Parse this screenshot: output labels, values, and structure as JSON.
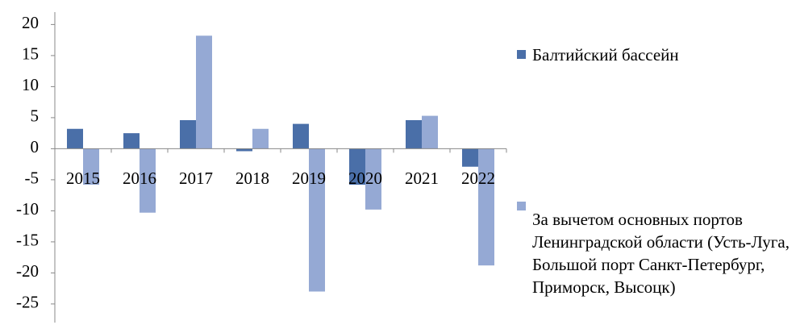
{
  "chart_data": {
    "type": "bar",
    "categories": [
      "2015",
      "2016",
      "2017",
      "2018",
      "2019",
      "2020",
      "2021",
      "2022"
    ],
    "series": [
      {
        "name": "Балтийский бассейн",
        "color": "#4a6fa8",
        "values": [
          3.2,
          2.5,
          4.6,
          -0.4,
          4.0,
          -5.8,
          4.6,
          -2.9
        ]
      },
      {
        "name": "За вычетом основных портов Ленинградской области (Усть-Луга, Большой порт Санкт-Петербург, Приморск, Высоцк)",
        "color": "#95a9d4",
        "values": [
          -5.8,
          -10.3,
          18.2,
          3.2,
          -23.0,
          -9.8,
          5.3,
          -18.8
        ]
      }
    ],
    "ylim": [
      -28,
      22
    ],
    "yticks": [
      -25,
      -20,
      -15,
      -10,
      -5,
      0,
      5,
      10,
      15,
      20
    ],
    "legend": "right"
  }
}
